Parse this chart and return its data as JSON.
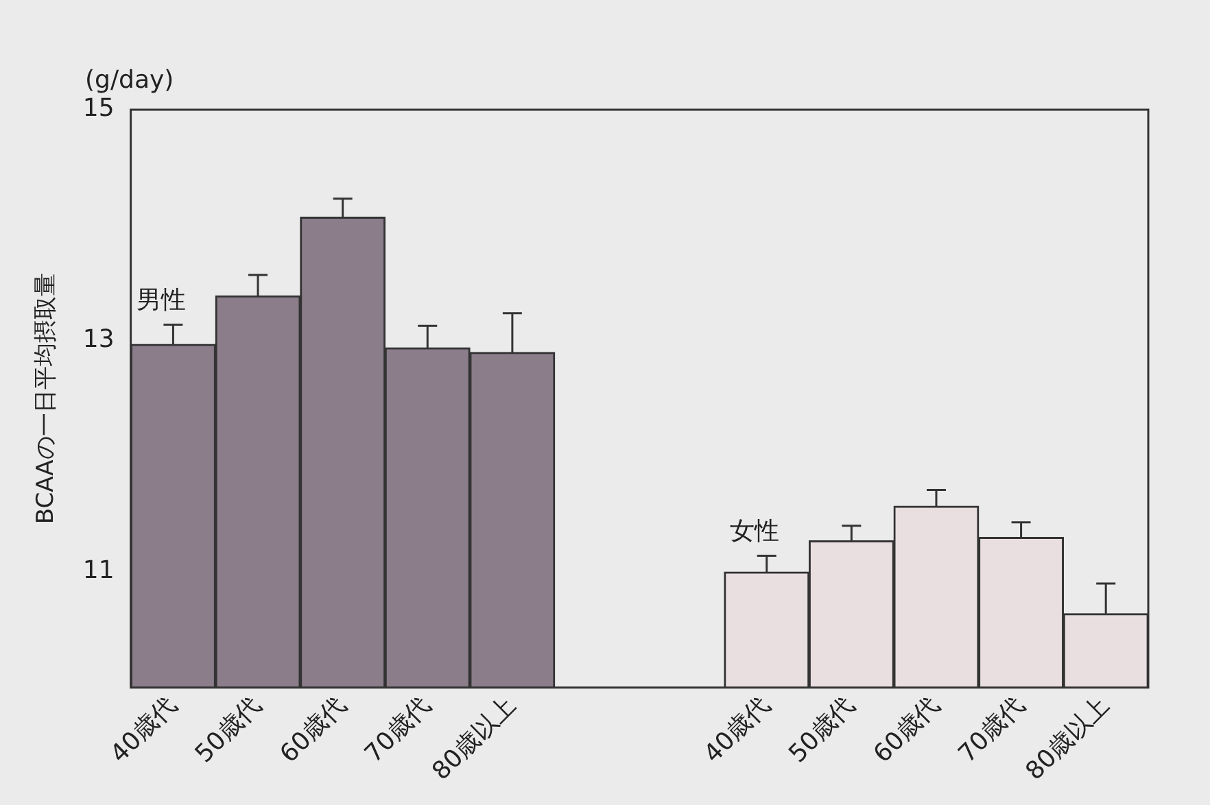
{
  "chart_data": {
    "type": "bar",
    "ylabel": "BCAAの一日平均摂取量",
    "annotations": [
      "(g/day)"
    ],
    "categories": [
      "40歳代",
      "50歳代",
      "60歳代",
      "70歳代",
      "80歳以上",
      null,
      null,
      "40歳代",
      "50歳代",
      "60歳代",
      "70歳代",
      "80歳以上"
    ],
    "series": [
      {
        "name": "男性",
        "color": "#8b7d8a",
        "values": [
          12.97,
          13.39,
          14.07,
          12.94,
          12.9,
          null,
          null,
          null,
          null,
          null,
          null,
          null
        ],
        "errors": [
          0.17,
          0.18,
          0.16,
          0.19,
          0.34,
          null,
          null,
          null,
          null,
          null,
          null,
          null
        ]
      },
      {
        "name": "女性",
        "color": "#e9dfe1",
        "values": [
          null,
          null,
          null,
          null,
          null,
          null,
          null,
          11.0,
          11.27,
          11.57,
          11.3,
          10.64
        ],
        "errors": [
          null,
          null,
          null,
          null,
          null,
          null,
          null,
          0.14,
          0.13,
          0.14,
          0.13,
          0.26
        ]
      }
    ],
    "ylim": [
      10,
      15
    ],
    "yticks": [
      11,
      13,
      15
    ],
    "grid": false,
    "legend": false
  }
}
